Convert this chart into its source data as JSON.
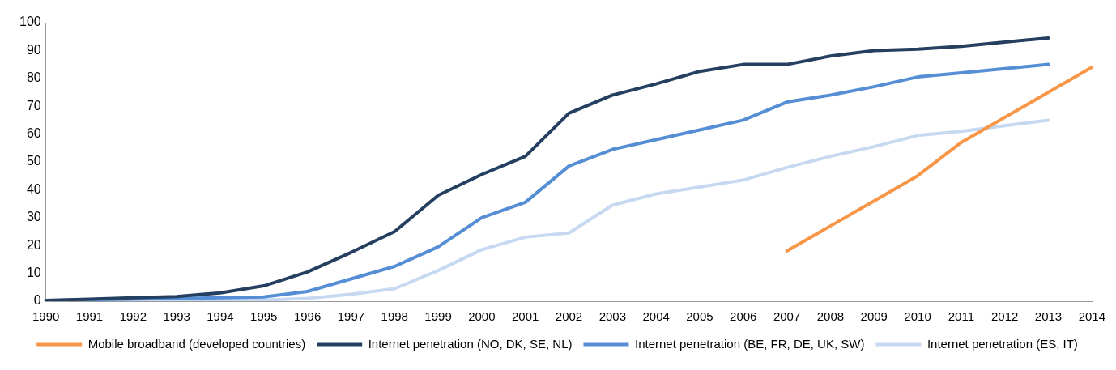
{
  "chart_data": {
    "type": "line",
    "categories": [
      "1990",
      "1991",
      "1992",
      "1993",
      "1994",
      "1995",
      "1996",
      "1997",
      "1998",
      "1999",
      "2000",
      "2001",
      "2002",
      "2003",
      "2004",
      "2005",
      "2006",
      "2007",
      "2008",
      "2009",
      "2010",
      "2011",
      "2012",
      "2013",
      "2014"
    ],
    "ylim": [
      0,
      100
    ],
    "yticks": [
      0,
      10,
      20,
      30,
      40,
      50,
      60,
      70,
      80,
      90,
      100
    ],
    "grid": false,
    "legend": "bottom",
    "marker": "none",
    "line_style": "solid",
    "series": [
      {
        "name": "Mobile broadband (developed countries)",
        "color": "#f79646",
        "values": [
          null,
          null,
          null,
          null,
          null,
          null,
          null,
          null,
          null,
          null,
          null,
          null,
          null,
          null,
          null,
          null,
          null,
          18,
          27,
          36,
          45,
          57,
          66,
          75,
          84
        ]
      },
      {
        "name": "Internet penetration (NO, DK, SE, NL)",
        "color": "#243f60",
        "values": [
          0.3,
          0.7,
          1.2,
          1.7,
          3,
          5.5,
          10.5,
          17.5,
          25,
          38,
          45.5,
          52,
          67.5,
          74,
          78,
          82.5,
          85,
          85,
          88,
          90,
          90.5,
          91.5,
          93,
          94.5,
          null
        ]
      },
      {
        "name": "Internet penetration (BE, FR, DE, UK, SW)",
        "color": "#558ed5",
        "values": [
          0.2,
          0.5,
          0.8,
          1,
          1.2,
          1.5,
          3.5,
          8,
          12.5,
          19.5,
          30,
          35.5,
          48.5,
          54.5,
          58,
          61.5,
          65,
          71.5,
          74,
          77,
          80.5,
          82,
          83.5,
          85,
          null
        ]
      },
      {
        "name": "Internet penetration (ES, IT)",
        "color": "#c6d9f1",
        "values": [
          0,
          null,
          0.2,
          0.3,
          0.3,
          0.4,
          1,
          2.5,
          4.5,
          11,
          18.5,
          23,
          24.5,
          34.5,
          38.5,
          41,
          43.5,
          48,
          52,
          55.5,
          59.5,
          61,
          63,
          65,
          null
        ]
      }
    ]
  }
}
